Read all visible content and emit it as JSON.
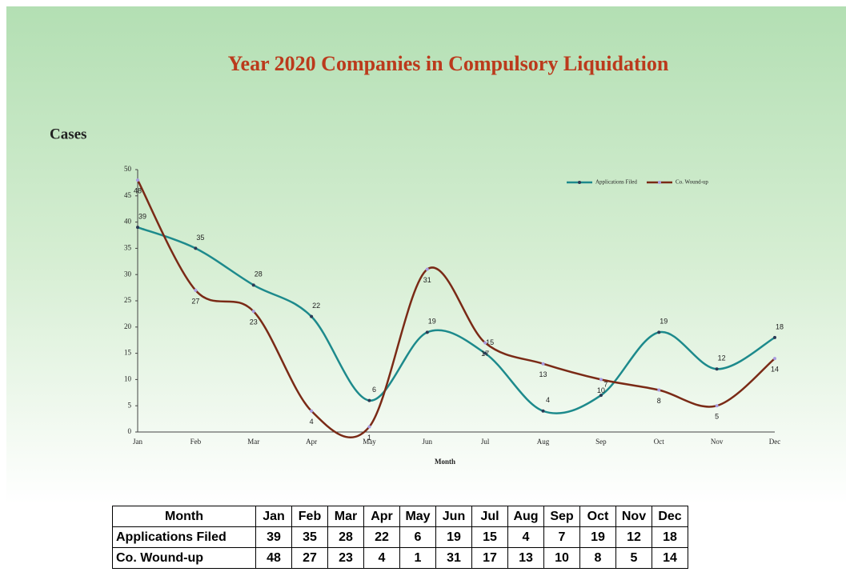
{
  "chart_data": {
    "type": "line",
    "title": "Year 2020 Companies in Compulsory Liquidation",
    "y_label": "Cases",
    "x_label": "Month",
    "table_header": "Month",
    "categories": [
      "Jan",
      "Feb",
      "Mar",
      "Apr",
      "May",
      "Jun",
      "Jul",
      "Aug",
      "Sep",
      "Oct",
      "Nov",
      "Dec"
    ],
    "series": [
      {
        "name": "Applications Filed",
        "color": "#1d8a8c",
        "marker_color": "#2b3a55",
        "values": [
          39,
          35,
          28,
          22,
          6,
          19,
          15,
          4,
          7,
          19,
          12,
          18
        ]
      },
      {
        "name": "Co. Wound-up",
        "color": "#7a2a16",
        "marker_color": "#a99be0",
        "values": [
          48,
          27,
          23,
          4,
          1,
          31,
          17,
          13,
          10,
          8,
          5,
          14
        ]
      }
    ],
    "ylim": [
      0,
      50
    ],
    "yticks": [
      0,
      5,
      10,
      15,
      20,
      25,
      30,
      35,
      40,
      45,
      50
    ],
    "smooth": true,
    "grid": false,
    "legend": "top-right"
  }
}
